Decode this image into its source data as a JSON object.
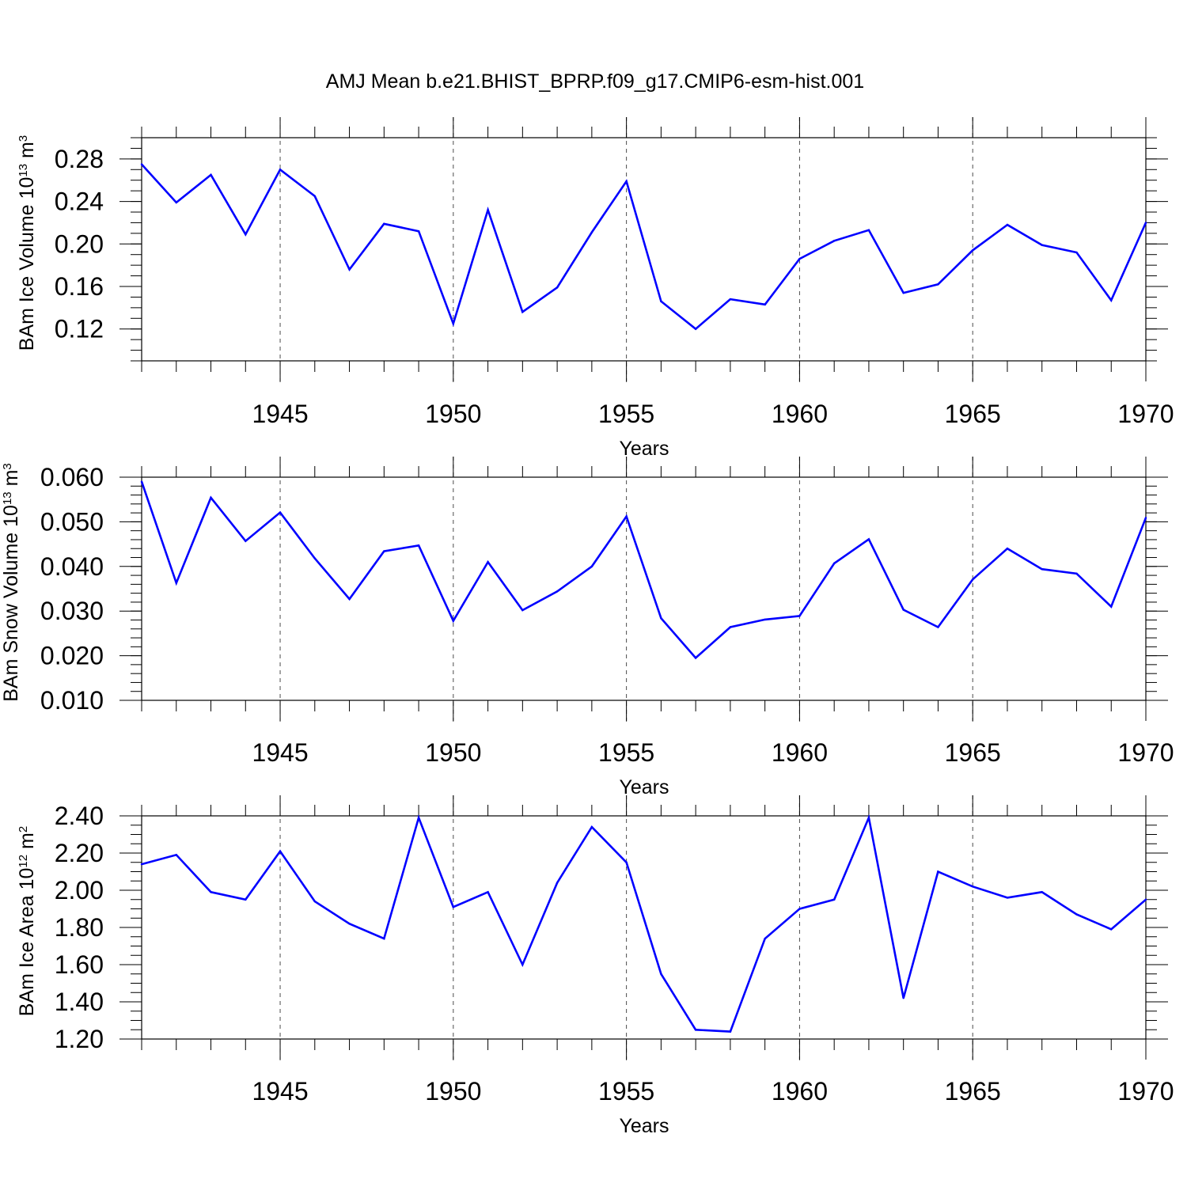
{
  "title": "AMJ Mean b.e21.BHIST_BPRP.f09_g17.CMIP6-esm-hist.001",
  "colors": {
    "line": "#0000ff",
    "axis": "#000000",
    "grid": "#000000"
  },
  "chart_data": [
    {
      "type": "line",
      "name": "ice-volume",
      "ylabel_main": "BAm Ice Volume 10",
      "ylabel_exp": "13",
      "ylabel_unit": " m",
      "ylabel_unit_exp": "3",
      "xlabel": "Years",
      "xlim": [
        1941,
        1970
      ],
      "ylim": [
        0.09,
        0.3
      ],
      "yticks": [
        0.12,
        0.16,
        0.2,
        0.24,
        0.28
      ],
      "ytick_labels": [
        "0.12",
        "0.16",
        "0.20",
        "0.24",
        "0.28"
      ],
      "yminor_step": 0.01,
      "xticks": [
        1945,
        1950,
        1955,
        1960,
        1965,
        1970
      ],
      "xtick_labels": [
        "1945",
        "1950",
        "1955",
        "1960",
        "1965",
        "1970"
      ],
      "x": [
        1941,
        1942,
        1943,
        1944,
        1945,
        1946,
        1947,
        1948,
        1949,
        1950,
        1951,
        1952,
        1953,
        1954,
        1955,
        1956,
        1957,
        1958,
        1959,
        1960,
        1961,
        1962,
        1963,
        1964,
        1965,
        1966,
        1967,
        1968,
        1969,
        1970
      ],
      "values": [
        0.275,
        0.239,
        0.265,
        0.209,
        0.27,
        0.245,
        0.176,
        0.219,
        0.212,
        0.125,
        0.232,
        0.136,
        0.159,
        0.211,
        0.259,
        0.146,
        0.12,
        0.148,
        0.143,
        0.186,
        0.203,
        0.213,
        0.154,
        0.162,
        0.194,
        0.218,
        0.199,
        0.192,
        0.147,
        0.22
      ]
    },
    {
      "type": "line",
      "name": "snow-volume",
      "ylabel_main": "BAm Snow Volume 10",
      "ylabel_exp": "13",
      "ylabel_unit": " m",
      "ylabel_unit_exp": "3",
      "xlabel": "Years",
      "xlim": [
        1941,
        1970
      ],
      "ylim": [
        0.01,
        0.06
      ],
      "yticks": [
        0.01,
        0.02,
        0.03,
        0.04,
        0.05,
        0.06
      ],
      "ytick_labels": [
        "0.010",
        "0.020",
        "0.030",
        "0.040",
        "0.050",
        "0.060"
      ],
      "yminor_step": 0.002,
      "xticks": [
        1945,
        1950,
        1955,
        1960,
        1965,
        1970
      ],
      "xtick_labels": [
        "1945",
        "1950",
        "1955",
        "1960",
        "1965",
        "1970"
      ],
      "x": [
        1941,
        1942,
        1943,
        1944,
        1945,
        1946,
        1947,
        1948,
        1949,
        1950,
        1951,
        1952,
        1953,
        1954,
        1955,
        1956,
        1957,
        1958,
        1959,
        1960,
        1961,
        1962,
        1963,
        1964,
        1965,
        1966,
        1967,
        1968,
        1969,
        1970
      ],
      "values": [
        0.059,
        0.0363,
        0.0554,
        0.0457,
        0.0521,
        0.0418,
        0.0327,
        0.0434,
        0.0447,
        0.0278,
        0.041,
        0.0302,
        0.0344,
        0.04,
        0.0512,
        0.0284,
        0.0195,
        0.0264,
        0.0281,
        0.0289,
        0.0407,
        0.0461,
        0.0303,
        0.0264,
        0.0371,
        0.044,
        0.0394,
        0.0384,
        0.031,
        0.0509
      ]
    },
    {
      "type": "line",
      "name": "ice-area",
      "ylabel_main": "BAm Ice Area 10",
      "ylabel_exp": "12",
      "ylabel_unit": " m",
      "ylabel_unit_exp": "2",
      "xlabel": "Years",
      "xlim": [
        1941,
        1970
      ],
      "ylim": [
        1.2,
        2.4
      ],
      "yticks": [
        1.2,
        1.4,
        1.6,
        1.8,
        2.0,
        2.2,
        2.4
      ],
      "ytick_labels": [
        "1.20",
        "1.40",
        "1.60",
        "1.80",
        "2.00",
        "2.20",
        "2.40"
      ],
      "yminor_step": 0.05,
      "xticks": [
        1945,
        1950,
        1955,
        1960,
        1965,
        1970
      ],
      "xtick_labels": [
        "1945",
        "1950",
        "1955",
        "1960",
        "1965",
        "1970"
      ],
      "x": [
        1941,
        1942,
        1943,
        1944,
        1945,
        1946,
        1947,
        1948,
        1949,
        1950,
        1951,
        1952,
        1953,
        1954,
        1955,
        1956,
        1957,
        1958,
        1959,
        1960,
        1961,
        1962,
        1963,
        1964,
        1965,
        1966,
        1967,
        1968,
        1969,
        1970
      ],
      "values": [
        2.14,
        2.19,
        1.99,
        1.95,
        2.21,
        1.94,
        1.82,
        1.74,
        2.39,
        1.91,
        1.99,
        1.6,
        2.04,
        2.34,
        2.15,
        1.55,
        1.25,
        1.24,
        1.74,
        1.9,
        1.95,
        2.39,
        1.42,
        2.1,
        2.02,
        1.96,
        1.99,
        1.87,
        1.79,
        1.95
      ]
    }
  ]
}
